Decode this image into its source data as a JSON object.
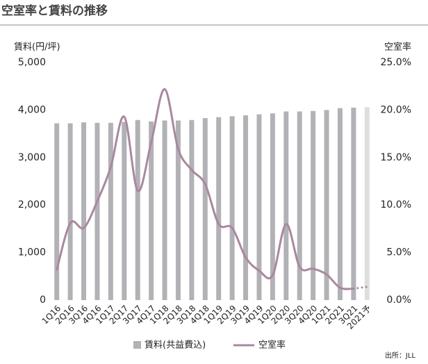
{
  "chart_data": {
    "type": "bar_line",
    "title": "空室率と賃料の推移",
    "y_label": "賃料(円/坪)",
    "y2_label": "空室率",
    "source": "出所：JLL",
    "categories": [
      "1Q16",
      "2Q16",
      "3Q16",
      "4Q16",
      "1Q17",
      "2Q17",
      "3Q17",
      "4Q17",
      "1Q18",
      "2Q18",
      "3Q18",
      "4Q18",
      "1Q19",
      "2Q19",
      "3Q19",
      "4Q19",
      "1Q20",
      "2Q20",
      "3Q20",
      "4Q20",
      "1Q21",
      "2Q21",
      "3Q21",
      "2021予"
    ],
    "series": [
      {
        "name": "賃料(共益費込)",
        "type": "bar",
        "color": "#b2b2b6",
        "colors": [
          "#b2b2b6",
          "#b2b2b6",
          "#b2b2b6",
          "#b2b2b6",
          "#b2b2b6",
          "#b2b2b6",
          "#b2b2b6",
          "#b2b2b6",
          "#b2b2b6",
          "#b2b2b6",
          "#b2b2b6",
          "#b2b2b6",
          "#b2b2b6",
          "#b2b2b6",
          "#b2b2b6",
          "#b2b2b6",
          "#b2b2b6",
          "#b2b2b6",
          "#b2b2b6",
          "#b2b2b6",
          "#b2b2b6",
          "#b2b2b6",
          "#b2b2b6",
          "#dedede"
        ],
        "values": [
          3720,
          3720,
          3740,
          3730,
          3730,
          3750,
          3790,
          3760,
          3780,
          3780,
          3790,
          3830,
          3850,
          3870,
          3890,
          3910,
          3930,
          3970,
          3970,
          3980,
          4000,
          4040,
          4050,
          4060
        ]
      },
      {
        "name": "空室率",
        "type": "line",
        "axis": "y2",
        "color": "#a8889f",
        "line_styles": [
          "solid",
          "solid",
          "solid",
          "solid",
          "solid",
          "solid",
          "solid",
          "solid",
          "solid",
          "solid",
          "solid",
          "solid",
          "solid",
          "solid",
          "solid",
          "solid",
          "solid",
          "solid",
          "solid",
          "solid",
          "solid",
          "solid",
          "solid",
          "dotted"
        ],
        "values": [
          3.2,
          8.1,
          7.6,
          10.4,
          14.0,
          19.3,
          11.5,
          16.6,
          22.2,
          15.9,
          13.7,
          12.2,
          8.0,
          7.6,
          4.5,
          3.1,
          2.6,
          8.0,
          3.5,
          3.3,
          2.7,
          1.3,
          1.2,
          1.4
        ]
      }
    ],
    "ylim": [
      0,
      5000
    ],
    "yticks": [
      0,
      {
        "value": 1000,
        "label": "1,000"
      },
      {
        "value": 2000,
        "label": "2,000"
      },
      {
        "value": 3000,
        "label": "3,000"
      },
      {
        "value": 4000,
        "label": "4,000"
      },
      {
        "value": 5000,
        "label": "5,000"
      }
    ],
    "y2lim": [
      0,
      25
    ],
    "y2ticks": [
      {
        "value": 0,
        "label": "0.0%"
      },
      {
        "value": 5,
        "label": "5.0%"
      },
      {
        "value": 10,
        "label": "10.0%"
      },
      {
        "value": 15,
        "label": "15.0%"
      },
      {
        "value": 20,
        "label": "20.0%"
      },
      {
        "value": 25,
        "label": "25.0%"
      }
    ],
    "grid": false,
    "smooth": true
  }
}
